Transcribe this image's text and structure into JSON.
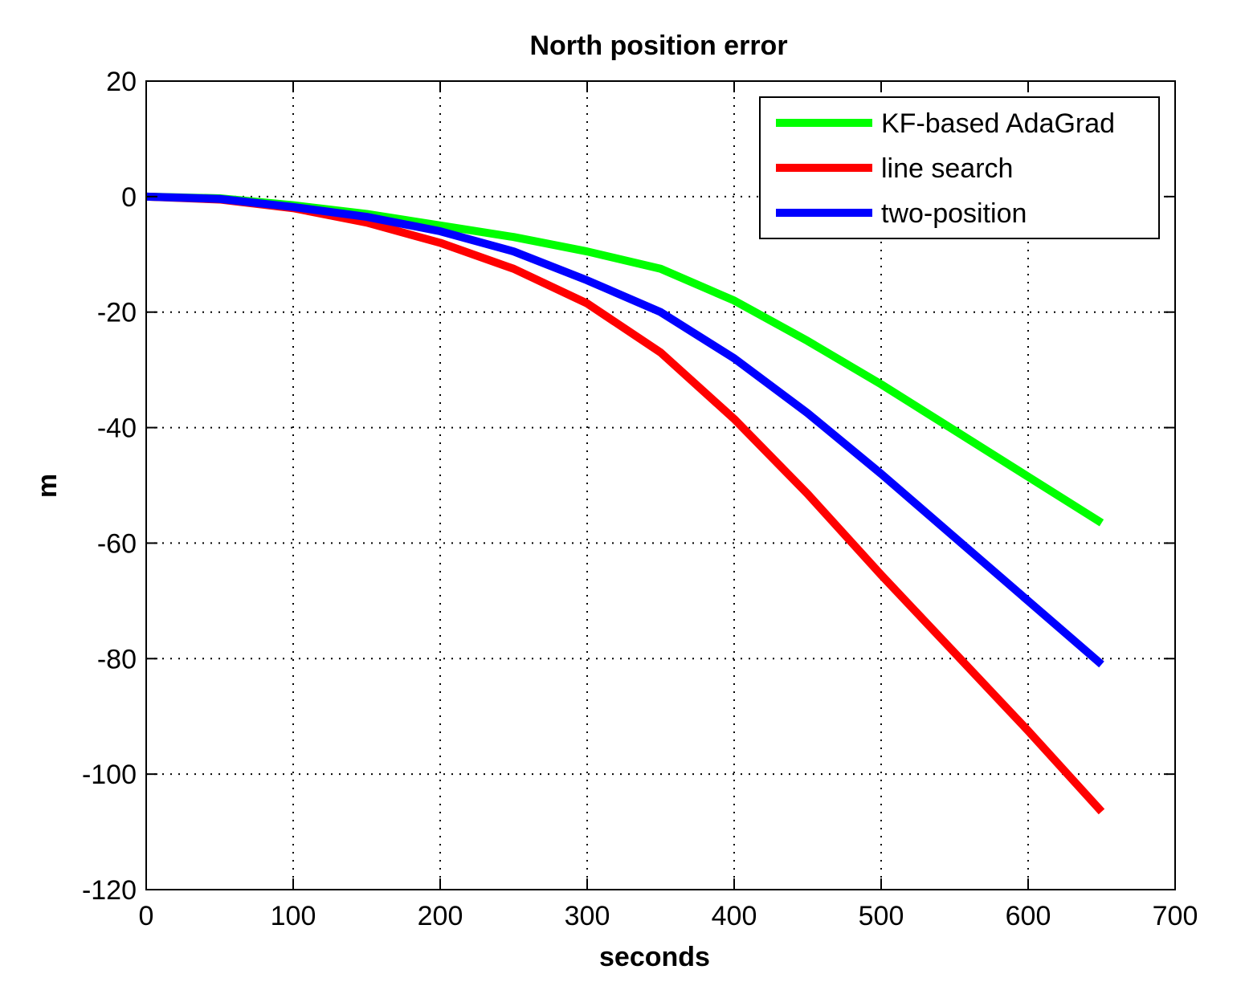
{
  "chart_data": {
    "type": "line",
    "title": "North position error",
    "xlabel": "seconds",
    "ylabel": "m",
    "xlim": [
      0,
      700
    ],
    "ylim": [
      -120,
      20
    ],
    "xticks": [
      0,
      100,
      200,
      300,
      400,
      500,
      600,
      700
    ],
    "yticks": [
      20,
      0,
      -20,
      -40,
      -60,
      -80,
      -100,
      -120
    ],
    "grid": true,
    "legend_position": "top-right",
    "x": [
      0,
      50,
      100,
      150,
      200,
      250,
      300,
      350,
      400,
      450,
      500,
      550,
      600,
      650
    ],
    "series": [
      {
        "name": "KF-based AdaGrad",
        "color": "#00ff00",
        "values": [
          0,
          -0.3,
          -1.5,
          -3.0,
          -5.0,
          -7.0,
          -9.5,
          -12.5,
          -18.0,
          -25.0,
          -32.5,
          -40.5,
          -48.5,
          -56.5
        ]
      },
      {
        "name": "line search",
        "color": "#ff0000",
        "values": [
          0,
          -0.5,
          -2.0,
          -4.5,
          -8.0,
          -12.5,
          -18.5,
          -27.0,
          -38.5,
          -51.5,
          -65.5,
          -79.0,
          -92.5,
          -106.5
        ]
      },
      {
        "name": "two-position",
        "color": "#0000ff",
        "values": [
          0,
          -0.4,
          -1.8,
          -3.5,
          -6.0,
          -9.5,
          -14.5,
          -20.0,
          -28.0,
          -37.5,
          -48.0,
          -59.0,
          -70.0,
          -81.0
        ]
      }
    ]
  }
}
